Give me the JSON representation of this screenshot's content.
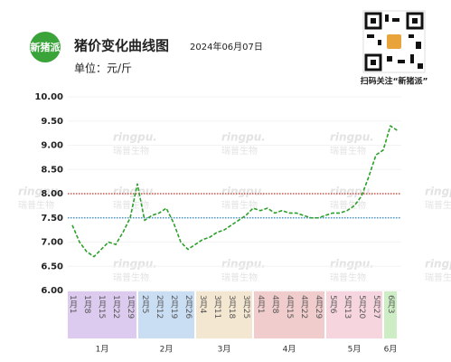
{
  "chart_data": {
    "type": "line",
    "title": "猪价变化曲线图",
    "subtitle": "2024年06月07日",
    "unit_label": "单位：元/斤",
    "logo": "新猪派",
    "qr_caption": "扫码关注“新猪派”",
    "watermark": {
      "brand": "ringpu.",
      "name": "瑞普生物"
    },
    "categories": [
      "1月1",
      null,
      "1月8",
      null,
      "1月15",
      null,
      "1月22",
      null,
      "1月29",
      null,
      "2月5",
      null,
      "2月12",
      null,
      "2月19",
      null,
      "2月26",
      null,
      "3月4",
      null,
      "3月11",
      null,
      "3月18",
      null,
      "3月25",
      null,
      "4月1",
      null,
      "4月8",
      null,
      "4月15",
      null,
      "4月22",
      null,
      "4月29",
      null,
      "5月6",
      null,
      "5月13",
      null,
      "5月20",
      null,
      "5月27",
      null,
      "6月3",
      null
    ],
    "series": [
      {
        "name": "猪价",
        "color": "#2ca02c",
        "values": [
          7.35,
          7.0,
          6.8,
          6.7,
          6.85,
          7.0,
          6.95,
          7.2,
          7.5,
          8.2,
          7.45,
          7.55,
          7.6,
          7.7,
          7.4,
          7.0,
          6.85,
          6.95,
          7.05,
          7.1,
          7.2,
          7.25,
          7.35,
          7.45,
          7.55,
          7.7,
          7.65,
          7.7,
          7.6,
          7.65,
          7.6,
          7.6,
          7.55,
          7.5,
          7.5,
          7.55,
          7.6,
          7.6,
          7.65,
          7.75,
          7.95,
          8.35,
          8.8,
          8.9,
          9.4,
          9.3
        ]
      }
    ],
    "months": [
      {
        "label": "1月",
        "color": "#dccbee"
      },
      {
        "label": "2月",
        "color": "#c9ddf3"
      },
      {
        "label": "3月",
        "color": "#f3e7d1"
      },
      {
        "label": "4月",
        "color": "#f1cccc"
      },
      {
        "label": "5月",
        "color": "#f6d5de"
      },
      {
        "label": "6月",
        "color": "#cdeec4"
      }
    ],
    "reference_lines": [
      {
        "value": 8,
        "color": "#c0392b"
      },
      {
        "value": 7.5,
        "color": "#2e86c1"
      }
    ],
    "ylim": [
      6,
      10
    ],
    "yticks": [
      {
        "value": 6,
        "label": "6.00"
      },
      {
        "value": 6.5,
        "label": "6.50"
      },
      {
        "value": 7,
        "label": "7.00"
      },
      {
        "value": 7.5,
        "label": "7.50"
      },
      {
        "value": 8,
        "label": "8.00"
      },
      {
        "value": 8.5,
        "label": "8.50"
      },
      {
        "value": 9,
        "label": "9.00"
      },
      {
        "value": 9.5,
        "label": "9.50"
      },
      {
        "value": 10,
        "label": "10.00"
      }
    ],
    "grid": true
  }
}
